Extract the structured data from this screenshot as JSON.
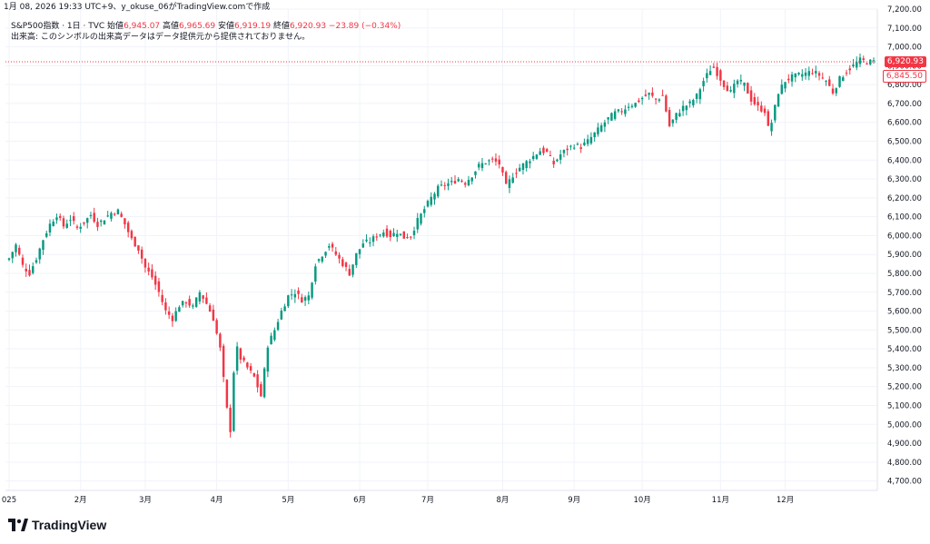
{
  "snapshot_text": "1月 08, 2026 19:33 UTC+9、y_okuse_06がTradingView.comで作成",
  "legend": {
    "symbol": "S&P500指数 · 1日 · TVC",
    "open_label": "始値",
    "open_value": "6,945.07",
    "high_label": "高値",
    "high_value": "6,965.69",
    "low_label": "安値",
    "low_value": "6,919.19",
    "close_label": "終値",
    "close_value": "6,920.93",
    "change": "−23.89 (−0.34%)"
  },
  "volume_notice": "出来高: このシンボルの出来高データはデータ提供元から提供されておりません。",
  "price_tag": "6,920.93",
  "ref_tag": "6,845.50",
  "brand": "TradingView",
  "colors": {
    "up": "#089981",
    "down": "#f23645",
    "grid": "#f0f3fa",
    "text": "#131722"
  },
  "chart_data": {
    "type": "candlestick",
    "ylim": [
      4650,
      7200
    ],
    "y_ticks": [
      "7,200.00",
      "7,100.00",
      "7,000.00",
      "6,900.00",
      "6,800.00",
      "6,700.00",
      "6,600.00",
      "6,500.00",
      "6,400.00",
      "6,300.00",
      "6,200.00",
      "6,100.00",
      "6,000.00",
      "5,900.00",
      "5,800.00",
      "5,700.00",
      "5,600.00",
      "5,500.00",
      "5,400.00",
      "5,300.00",
      "5,200.00",
      "5,100.00",
      "5,000.00",
      "4,900.00",
      "4,800.00",
      "4,700.00"
    ],
    "y_tick_values": [
      7200,
      7100,
      7000,
      6900,
      6800,
      6700,
      6600,
      6500,
      6400,
      6300,
      6200,
      6100,
      6000,
      5900,
      5800,
      5700,
      5600,
      5500,
      5400,
      5300,
      5200,
      5100,
      5000,
      4900,
      4800,
      4700
    ],
    "x_labels": [
      {
        "label": "025",
        "day": 0
      },
      {
        "label": "2月",
        "day": 21
      },
      {
        "label": "3月",
        "day": 40
      },
      {
        "label": "4月",
        "day": 61
      },
      {
        "label": "5月",
        "day": 82
      },
      {
        "label": "6月",
        "day": 103
      },
      {
        "label": "7月",
        "day": 123
      },
      {
        "label": "8月",
        "day": 145
      },
      {
        "label": "9月",
        "day": 166
      },
      {
        "label": "10月",
        "day": 186
      },
      {
        "label": "11月",
        "day": 209
      },
      {
        "label": "12月",
        "day": 228
      }
    ],
    "last_close": 6920.93,
    "ref_level": 6845.5,
    "close_path": [
      [
        0,
        5880
      ],
      [
        2,
        5950
      ],
      [
        4,
        5840
      ],
      [
        6,
        5800
      ],
      [
        8,
        5880
      ],
      [
        10,
        5980
      ],
      [
        12,
        6060
      ],
      [
        14,
        6110
      ],
      [
        16,
        6050
      ],
      [
        18,
        6090
      ],
      [
        20,
        6040
      ],
      [
        22,
        6070
      ],
      [
        24,
        6110
      ],
      [
        26,
        6060
      ],
      [
        28,
        6090
      ],
      [
        30,
        6120
      ],
      [
        32,
        6130
      ],
      [
        34,
        6060
      ],
      [
        36,
        5980
      ],
      [
        38,
        5930
      ],
      [
        40,
        5830
      ],
      [
        42,
        5780
      ],
      [
        44,
        5700
      ],
      [
        46,
        5600
      ],
      [
        48,
        5560
      ],
      [
        50,
        5630
      ],
      [
        52,
        5650
      ],
      [
        54,
        5620
      ],
      [
        56,
        5700
      ],
      [
        58,
        5640
      ],
      [
        60,
        5560
      ],
      [
        62,
        5400
      ],
      [
        64,
        5080
      ],
      [
        65,
        4970
      ],
      [
        66,
        5280
      ],
      [
        67,
        5400
      ],
      [
        68,
        5350
      ],
      [
        70,
        5300
      ],
      [
        72,
        5250
      ],
      [
        74,
        5150
      ],
      [
        76,
        5420
      ],
      [
        78,
        5500
      ],
      [
        80,
        5600
      ],
      [
        82,
        5680
      ],
      [
        84,
        5700
      ],
      [
        86,
        5660
      ],
      [
        88,
        5680
      ],
      [
        90,
        5850
      ],
      [
        92,
        5900
      ],
      [
        94,
        5950
      ],
      [
        96,
        5900
      ],
      [
        98,
        5850
      ],
      [
        100,
        5800
      ],
      [
        102,
        5900
      ],
      [
        104,
        5960
      ],
      [
        106,
        5970
      ],
      [
        108,
        6000
      ],
      [
        110,
        6020
      ],
      [
        112,
        6000
      ],
      [
        114,
        6020
      ],
      [
        116,
        5990
      ],
      [
        118,
        6000
      ],
      [
        120,
        6080
      ],
      [
        122,
        6140
      ],
      [
        124,
        6200
      ],
      [
        126,
        6250
      ],
      [
        128,
        6270
      ],
      [
        130,
        6280
      ],
      [
        132,
        6300
      ],
      [
        134,
        6280
      ],
      [
        136,
        6320
      ],
      [
        138,
        6370
      ],
      [
        140,
        6390
      ],
      [
        142,
        6400
      ],
      [
        144,
        6380
      ],
      [
        146,
        6260
      ],
      [
        148,
        6320
      ],
      [
        150,
        6360
      ],
      [
        152,
        6390
      ],
      [
        154,
        6420
      ],
      [
        156,
        6450
      ],
      [
        158,
        6440
      ],
      [
        160,
        6380
      ],
      [
        162,
        6430
      ],
      [
        164,
        6460
      ],
      [
        166,
        6480
      ],
      [
        168,
        6470
      ],
      [
        170,
        6500
      ],
      [
        172,
        6540
      ],
      [
        174,
        6580
      ],
      [
        176,
        6620
      ],
      [
        178,
        6650
      ],
      [
        180,
        6660
      ],
      [
        182,
        6690
      ],
      [
        184,
        6700
      ],
      [
        186,
        6730
      ],
      [
        188,
        6750
      ],
      [
        190,
        6720
      ],
      [
        192,
        6740
      ],
      [
        194,
        6580
      ],
      [
        196,
        6640
      ],
      [
        198,
        6680
      ],
      [
        200,
        6700
      ],
      [
        202,
        6740
      ],
      [
        204,
        6820
      ],
      [
        206,
        6880
      ],
      [
        207,
        6890
      ],
      [
        208,
        6860
      ],
      [
        210,
        6800
      ],
      [
        212,
        6760
      ],
      [
        214,
        6820
      ],
      [
        216,
        6800
      ],
      [
        218,
        6720
      ],
      [
        220,
        6680
      ],
      [
        222,
        6660
      ],
      [
        223,
        6570
      ],
      [
        224,
        6600
      ],
      [
        225,
        6680
      ],
      [
        226,
        6760
      ],
      [
        228,
        6820
      ],
      [
        230,
        6840
      ],
      [
        232,
        6850
      ],
      [
        234,
        6860
      ],
      [
        236,
        6870
      ],
      [
        238,
        6850
      ],
      [
        240,
        6820
      ],
      [
        242,
        6760
      ],
      [
        244,
        6830
      ],
      [
        246,
        6870
      ],
      [
        248,
        6900
      ],
      [
        250,
        6930
      ],
      [
        252,
        6920
      ],
      [
        254,
        6921
      ]
    ],
    "total_days": 254
  }
}
